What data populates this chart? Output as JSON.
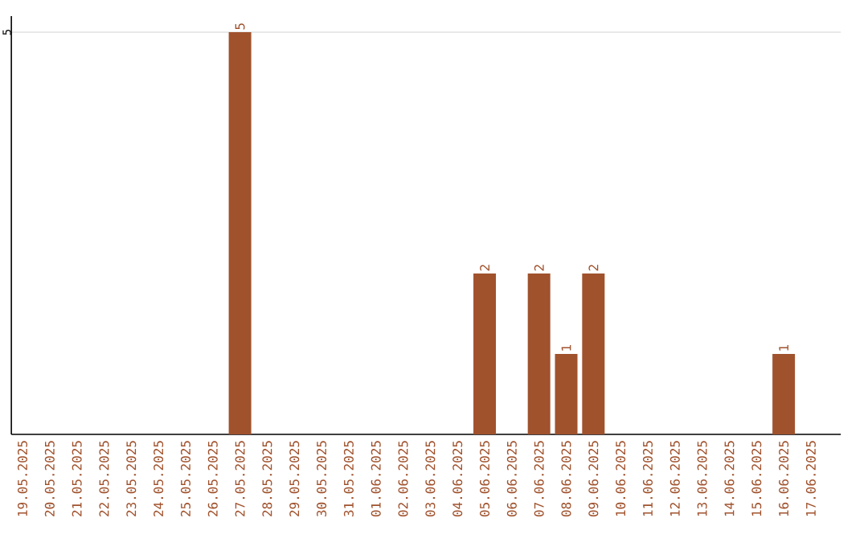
{
  "chart_data": {
    "type": "bar",
    "categories": [
      "19.05.2025",
      "20.05.2025",
      "21.05.2025",
      "22.05.2025",
      "23.05.2025",
      "24.05.2025",
      "25.05.2025",
      "26.05.2025",
      "27.05.2025",
      "28.05.2025",
      "29.05.2025",
      "30.05.2025",
      "31.05.2025",
      "01.06.2025",
      "02.06.2025",
      "03.06.2025",
      "04.06.2025",
      "05.06.2025",
      "06.06.2025",
      "07.06.2025",
      "08.06.2025",
      "09.06.2025",
      "10.06.2025",
      "11.06.2025",
      "12.06.2025",
      "13.06.2025",
      "14.06.2025",
      "15.06.2025",
      "16.06.2025",
      "17.06.2025"
    ],
    "values": [
      0,
      0,
      0,
      0,
      0,
      0,
      0,
      0,
      5,
      0,
      0,
      0,
      0,
      0,
      0,
      0,
      0,
      2,
      0,
      2,
      1,
      2,
      0,
      0,
      0,
      0,
      0,
      0,
      1,
      0
    ],
    "value_labels": [
      null,
      null,
      null,
      null,
      null,
      null,
      null,
      null,
      "5",
      null,
      null,
      null,
      null,
      null,
      null,
      null,
      null,
      "2",
      null,
      "2",
      "1",
      "2",
      null,
      null,
      null,
      null,
      null,
      null,
      "1",
      null
    ],
    "color": "#a0522d",
    "ylim": [
      0,
      5.2
    ],
    "yticks": [
      5
    ],
    "grid": "y"
  }
}
